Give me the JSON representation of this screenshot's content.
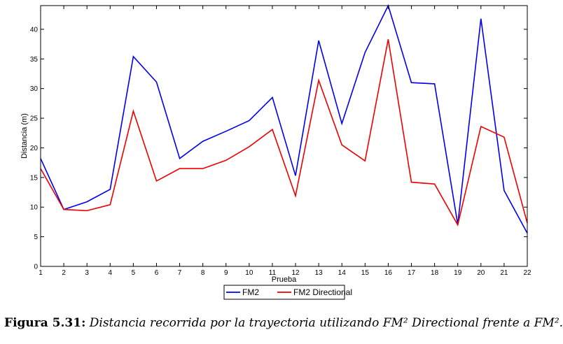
{
  "chart_data": {
    "type": "line",
    "xlabel": "Prueba",
    "ylabel": "Distancia (m)",
    "xlim": [
      1,
      22
    ],
    "ylim": [
      0,
      44
    ],
    "xticks": [
      1,
      2,
      3,
      4,
      5,
      6,
      7,
      8,
      9,
      10,
      11,
      12,
      13,
      14,
      15,
      16,
      17,
      18,
      19,
      20,
      21,
      22
    ],
    "yticks": [
      0,
      5,
      10,
      15,
      20,
      25,
      30,
      35,
      40
    ],
    "grid": false,
    "legend_position": "bottom-center",
    "x": [
      1,
      2,
      3,
      4,
      5,
      6,
      7,
      8,
      9,
      10,
      11,
      12,
      13,
      14,
      15,
      16,
      17,
      18,
      19,
      20,
      21,
      22
    ],
    "series": [
      {
        "name": "FM2",
        "color": "#0000ee",
        "values": [
          18.2,
          9.6,
          10.9,
          13.0,
          35.4,
          31.1,
          18.2,
          21.1,
          22.8,
          24.6,
          28.5,
          15.3,
          38.1,
          24.1,
          36.1,
          44.0,
          31.0,
          30.8,
          7.1,
          41.8,
          12.8,
          5.6
        ]
      },
      {
        "name": "FM2 Directional",
        "color": "#ee0000",
        "values": [
          16.5,
          9.6,
          9.4,
          10.4,
          26.2,
          14.4,
          16.5,
          16.5,
          17.9,
          20.2,
          23.1,
          11.9,
          31.4,
          20.5,
          17.8,
          38.3,
          14.2,
          13.9,
          7.0,
          23.6,
          21.8,
          7.3
        ]
      }
    ]
  },
  "caption": {
    "label": "Figura 5.31:",
    "text": "Distancia recorrida por la trayectoria utilizando FM² Directional frente a FM²."
  }
}
